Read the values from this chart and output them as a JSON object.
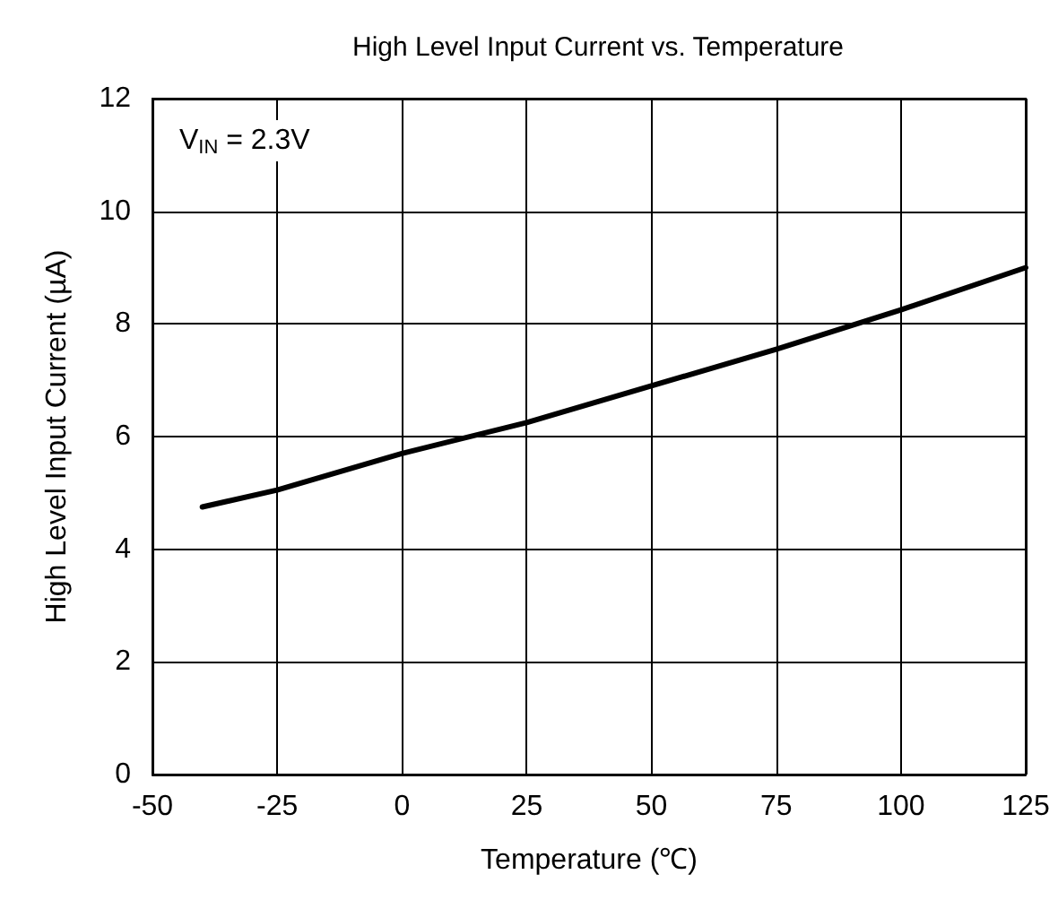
{
  "chart_data": {
    "type": "line",
    "title": "High Level Input Current vs. Temperature",
    "xlabel": "Temperature (℃)",
    "ylabel": "High Level Input Current (µA)",
    "annotations": [
      "V$_{IN}$ = 2.3V"
    ],
    "x": [
      -40,
      -25,
      0,
      25,
      50,
      75,
      100,
      125
    ],
    "series": [
      {
        "color": "#000000",
        "values": [
          4.75,
          5.05,
          5.7,
          6.25,
          6.9,
          7.55,
          8.25,
          9.0
        ]
      }
    ],
    "xlim": [
      -50,
      125
    ],
    "xticks": [
      -50,
      -25,
      0,
      25,
      50,
      75,
      100,
      125
    ],
    "ylim": [
      0,
      12
    ],
    "yticks": [
      0,
      2,
      4,
      6,
      8,
      10,
      12
    ],
    "grid": true,
    "marker": "none",
    "line_style": "solid"
  }
}
